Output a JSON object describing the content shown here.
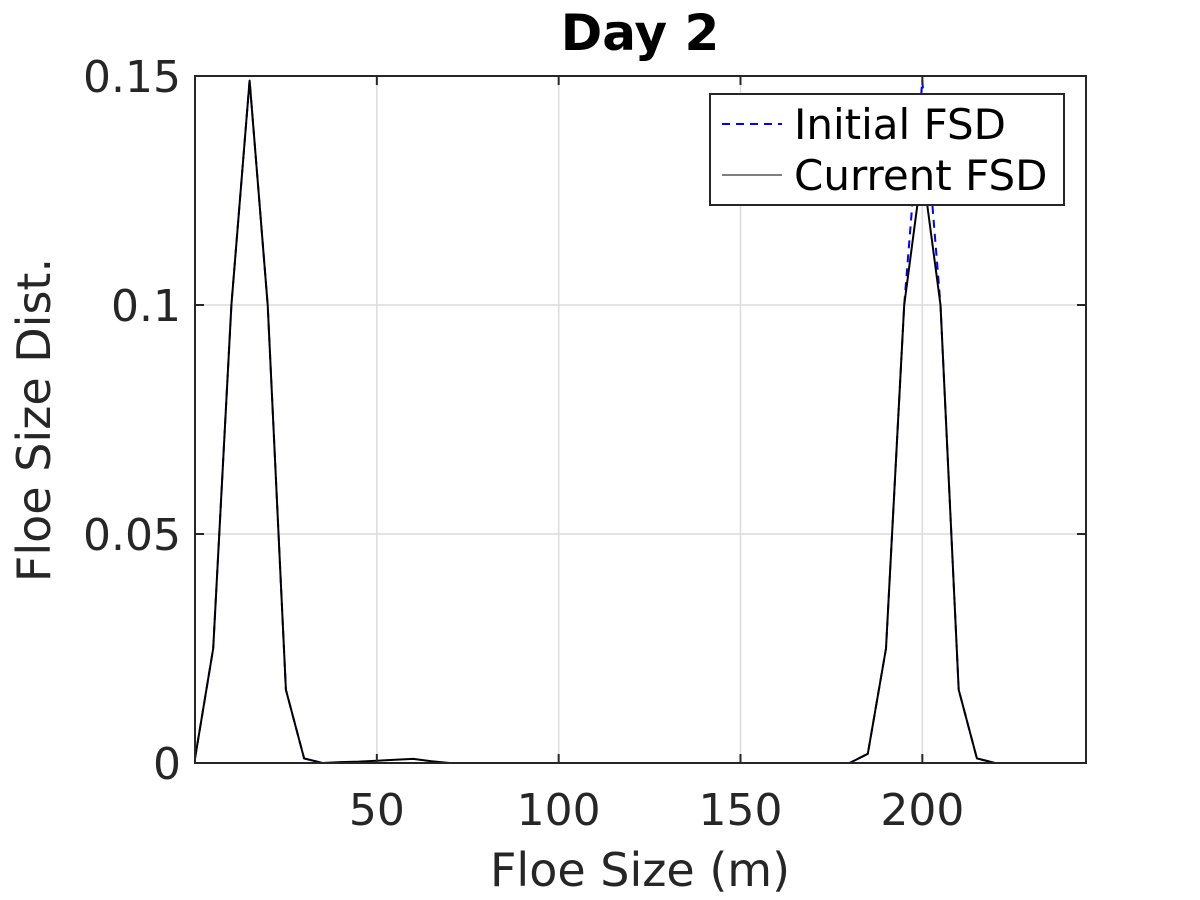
{
  "chart_data": {
    "type": "line",
    "title": "Day 2",
    "xlabel": "Floe Size (m)",
    "ylabel": "Floe Size Dist.",
    "xlim": [
      0,
      245
    ],
    "ylim": [
      0,
      0.15
    ],
    "xticks": [
      50,
      100,
      150,
      200
    ],
    "xtick_labels": [
      "50",
      "100",
      "150",
      "200"
    ],
    "yticks": [
      0,
      0.05,
      0.1,
      0.15
    ],
    "ytick_labels": [
      "0",
      "0.05",
      "0.1",
      "0.15"
    ],
    "grid": true,
    "legend_position": "top-right",
    "series": [
      {
        "name": "Initial FSD",
        "color": "#0000ff",
        "style": "dashed",
        "x": [
          0,
          5,
          10,
          15,
          20,
          25,
          30,
          35,
          40,
          45,
          50,
          55,
          60,
          65,
          70,
          75,
          80,
          85,
          90,
          95,
          100,
          105,
          110,
          115,
          120,
          125,
          130,
          135,
          140,
          145,
          150,
          155,
          160,
          165,
          170,
          175,
          180,
          185,
          190,
          195,
          200,
          205,
          210,
          215,
          220,
          225,
          230,
          235,
          240,
          245
        ],
        "y": [
          0.001,
          0.025,
          0.1,
          0.149,
          0.1,
          0.016,
          0.001,
          0.0,
          0.0,
          0.0,
          0.0,
          0.0,
          0.0,
          0.0,
          0.0,
          0.0,
          0.0,
          0.0,
          0.0,
          0.0,
          0.0,
          0.0,
          0.0,
          0.0,
          0.0,
          0.0,
          0.0,
          0.0,
          0.0,
          0.0,
          0.0,
          0.0,
          0.0,
          0.0,
          0.0,
          0.0,
          0.0,
          0.002,
          0.025,
          0.1,
          0.149,
          0.1,
          0.016,
          0.001,
          0.0,
          0.0,
          0.0,
          0.0,
          0.0,
          0.0
        ]
      },
      {
        "name": "Current FSD",
        "color": "#000000",
        "style": "solid",
        "x": [
          0,
          5,
          10,
          15,
          20,
          25,
          30,
          35,
          40,
          45,
          50,
          55,
          60,
          65,
          70,
          75,
          80,
          85,
          90,
          95,
          100,
          105,
          110,
          115,
          120,
          125,
          130,
          135,
          140,
          145,
          150,
          155,
          160,
          165,
          170,
          175,
          180,
          185,
          190,
          195,
          200,
          205,
          210,
          215,
          220,
          225,
          230,
          235,
          240,
          245
        ],
        "y": [
          0.001,
          0.025,
          0.1,
          0.149,
          0.1,
          0.016,
          0.001,
          0.0,
          0.0002,
          0.0003,
          0.0005,
          0.0007,
          0.0009,
          0.0004,
          0.0,
          0.0,
          0.0,
          0.0,
          0.0,
          0.0,
          0.0,
          0.0,
          0.0,
          0.0,
          0.0,
          0.0,
          0.0,
          0.0,
          0.0,
          0.0,
          0.0,
          0.0,
          0.0,
          0.0,
          0.0,
          0.0,
          0.0,
          0.002,
          0.025,
          0.1,
          0.13,
          0.1,
          0.016,
          0.001,
          0.0,
          0.0,
          0.0,
          0.0,
          0.0,
          0.0
        ]
      }
    ]
  }
}
